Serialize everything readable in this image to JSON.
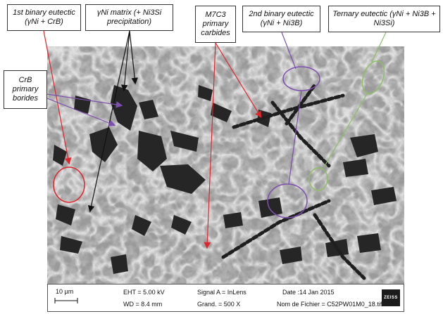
{
  "labels": {
    "binary1": {
      "line1": "1st binary eutectic",
      "line2": "(γNi + CrB)"
    },
    "matrix": {
      "line1": "γNi matrix (+ Ni3Si",
      "line2": "precipitation)"
    },
    "carbides": {
      "line1": "M7C3",
      "line2": "primary",
      "line3": "carbides"
    },
    "binary2": {
      "line1": "2nd binary eutectic",
      "line2": "(γNi + Ni3B)"
    },
    "ternary": {
      "line1": "Ternary eutectic (γNi + Ni3B +",
      "line2": "Ni3Si)"
    },
    "borides": {
      "line1": "CrB",
      "line2": "primary",
      "line3": "borides"
    }
  },
  "colors": {
    "red": "#e0242b",
    "purple": "#7e4fb0",
    "green": "#8cc063",
    "black": "#111111"
  },
  "databar": {
    "scale": "10 µm",
    "eht": "EHT =  5.00 kV",
    "wd": "WD =  8.4 mm",
    "signal": "Signal A = InLens",
    "grand": "Grand. =    500 X",
    "date": "Date :14 Jan 2015",
    "file": "Nom de Fichier = C52PW01M0_18.tif",
    "logo": "ZEISS"
  }
}
